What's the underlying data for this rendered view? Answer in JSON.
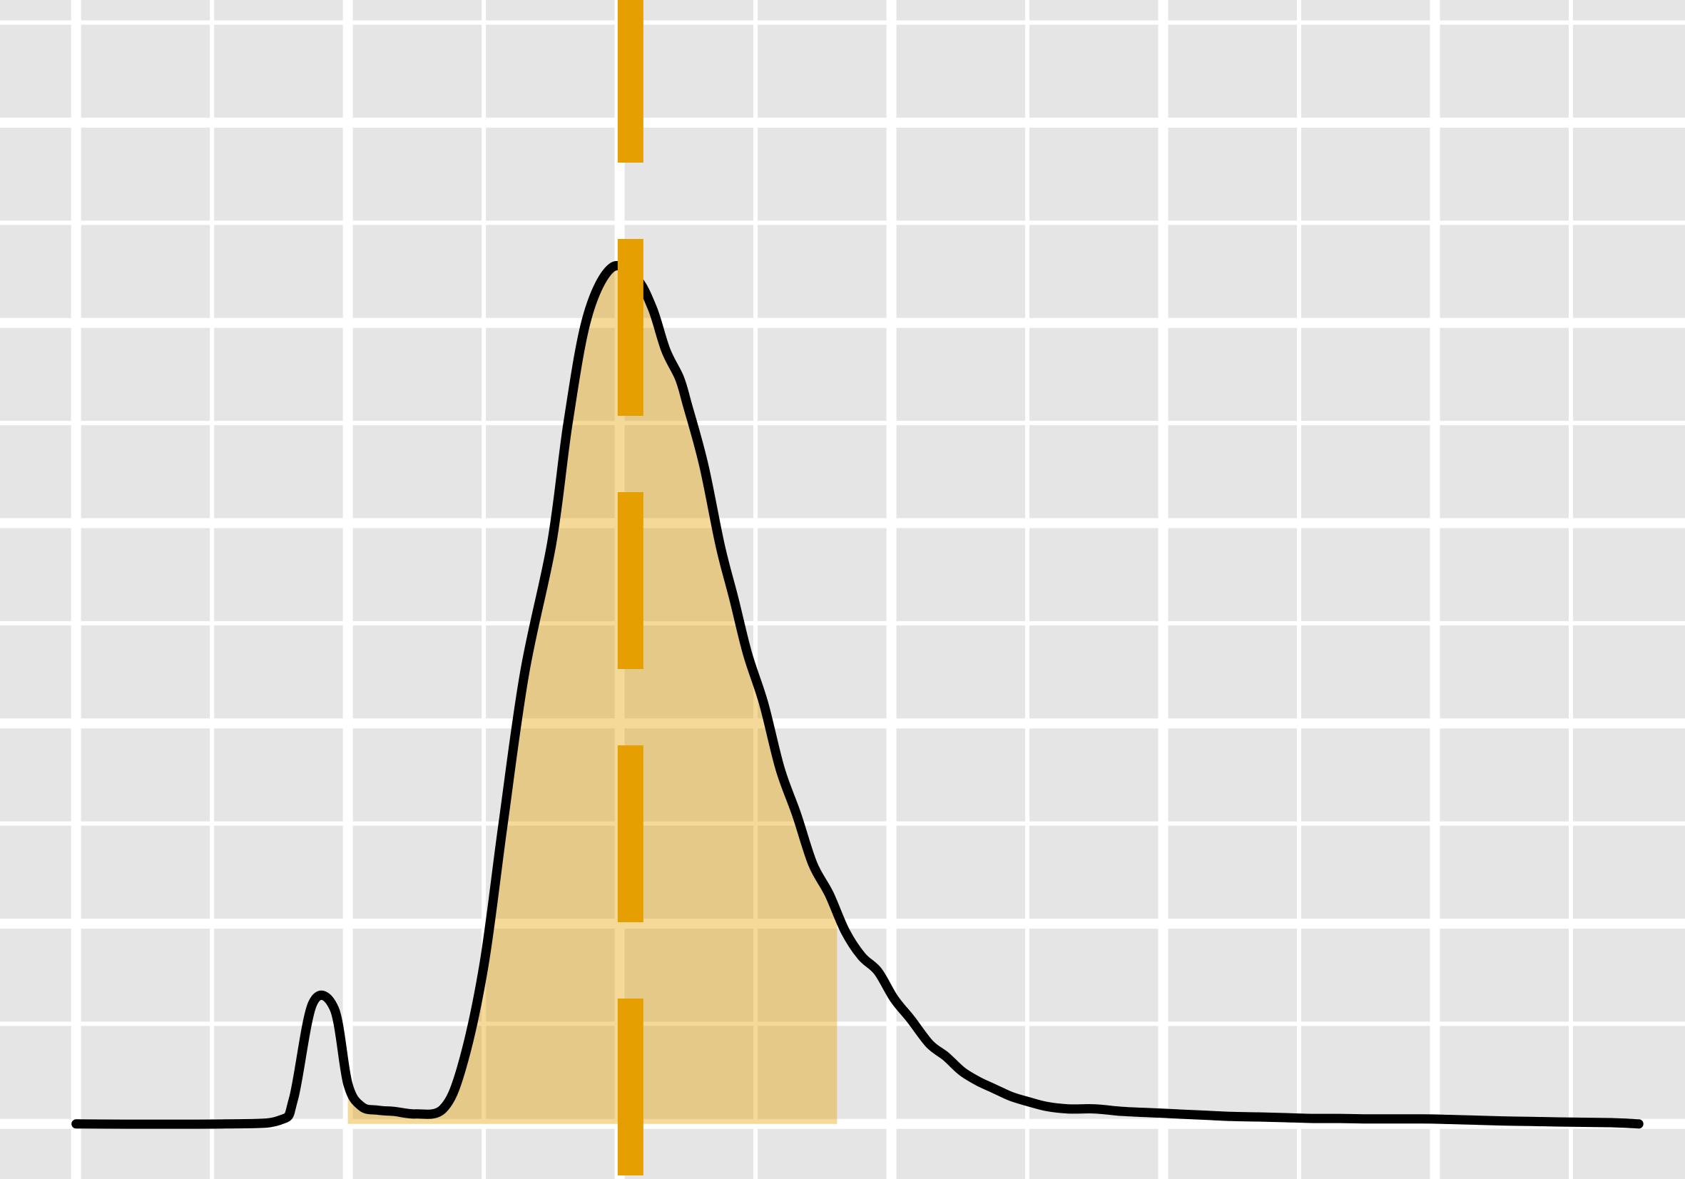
{
  "chart_data": {
    "type": "area",
    "title": "",
    "xlabel": "",
    "ylabel": "",
    "xlim": [
      -5.3,
      56.7
    ],
    "ylim": [
      -0.0022,
      0.0449
    ],
    "grid": true,
    "grid_color": "#ffffff",
    "panel_background": "#e5e5e5",
    "x_major_ticks": [
      -2.5,
      7.5,
      17.5,
      27.5,
      37.5,
      47.5,
      57.5
    ],
    "x_minor_ticks": [
      2.5,
      12.5,
      22.5,
      32.5,
      42.5,
      52.5
    ],
    "y_major_ticks": [
      0.0,
      0.008,
      0.016,
      0.024,
      0.032,
      0.04,
      0.048
    ],
    "y_minor_ticks": [
      0.004,
      0.012,
      0.02,
      0.028,
      0.036,
      0.044
    ],
    "shade_range": [
      7.5,
      25.5
    ],
    "series": [
      {
        "style": "density",
        "line_color": "#000000",
        "fill_color": "#e69f00",
        "fill_opacity": 0.4,
        "x": [
          -2.5,
          3.0,
          5.0,
          5.5,
          6.2,
          7.0,
          7.5,
          8.0,
          8.6,
          9.2,
          10.0,
          11.0,
          11.7,
          12.5,
          13.2,
          14.0,
          15.0,
          15.6,
          16.3,
          17.2,
          18.1,
          18.7,
          19.2,
          19.7,
          20.0,
          20.6,
          21.2,
          21.7,
          22.2,
          22.8,
          23.4,
          24.0,
          24.6,
          25.2,
          25.8,
          26.4,
          27.0,
          27.6,
          28.2,
          28.9,
          29.5,
          30.1,
          30.7,
          31.3,
          31.9,
          32.5,
          33.2,
          34.0,
          35.0,
          36.0,
          37.0,
          38.0,
          39.0,
          40.0,
          41.0,
          42.0,
          43.0,
          44.0,
          45.0,
          47.0,
          48.0,
          49.0,
          50.0,
          51.0,
          52.0,
          54.0,
          55.0
        ],
        "y": [
          0.0,
          0.0,
          0.00015,
          0.001,
          0.0048,
          0.0046,
          0.0016,
          0.0007,
          0.00055,
          0.0005,
          0.0004,
          0.0006,
          0.0023,
          0.0063,
          0.0119,
          0.018,
          0.0232,
          0.028,
          0.0322,
          0.0342,
          0.0338,
          0.0326,
          0.0309,
          0.0298,
          0.0287,
          0.0263,
          0.0231,
          0.021,
          0.0188,
          0.0168,
          0.0142,
          0.0124,
          0.0104,
          0.0092,
          0.0077,
          0.0067,
          0.0061,
          0.005,
          0.0042,
          0.0032,
          0.0027,
          0.0021,
          0.0017,
          0.0014,
          0.0011,
          0.0009,
          0.0007,
          0.0006,
          0.0006,
          0.0005,
          0.00045,
          0.0004,
          0.00035,
          0.0003,
          0.00028,
          0.00025,
          0.00022,
          0.00022,
          0.0002,
          0.0002,
          0.00018,
          0.00015,
          0.00012,
          0.0001,
          8e-05,
          5e-05,
          0.0
        ]
      }
    ],
    "reference_lines": [
      {
        "orientation": "vertical",
        "x": 17.9,
        "color": "#e69f00",
        "style": "dashed"
      }
    ]
  }
}
